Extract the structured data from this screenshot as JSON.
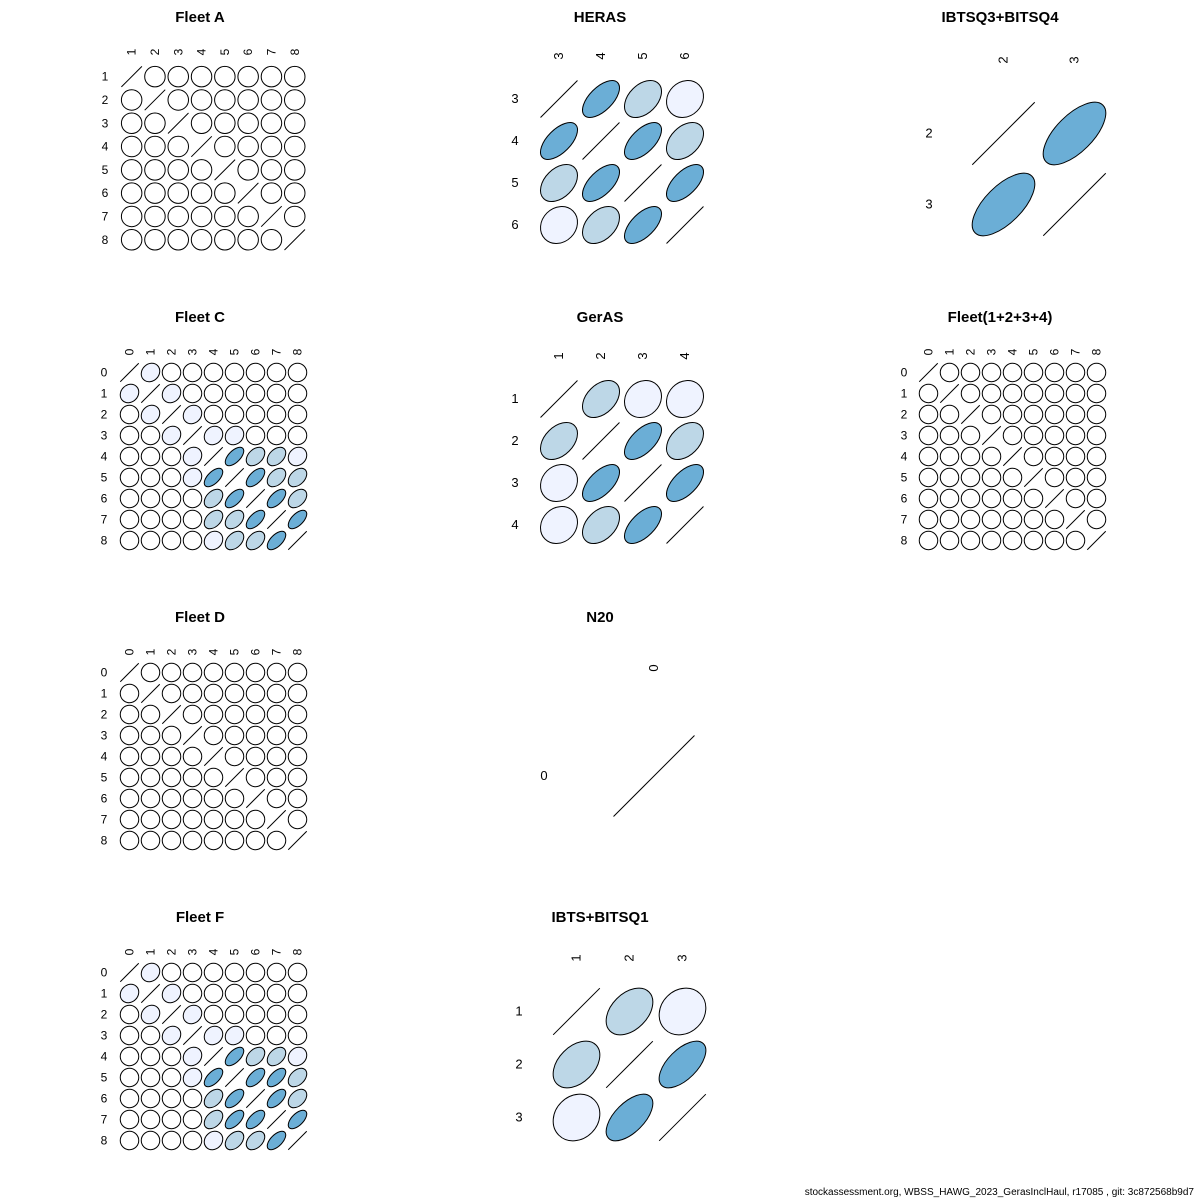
{
  "footer": "stockassessment.org, WBSS_HAWG_2023_GerasInclHaul, r17085 , git: 3c872568b9d7",
  "colors": {
    "strong": "#6baed6",
    "medium": "#bdd7e7",
    "light": "#eff3ff",
    "none": "#ffffff",
    "stroke": "#000000"
  },
  "chart_data": [
    {
      "type": "correlation-ellipse-matrix",
      "title": "Fleet A",
      "labels": [
        "1",
        "2",
        "3",
        "4",
        "5",
        "6",
        "7",
        "8"
      ],
      "correlations": []
    },
    {
      "type": "correlation-ellipse-matrix",
      "title": "HERAS",
      "labels": [
        "3",
        "4",
        "5",
        "6"
      ],
      "correlations": [
        [
          0,
          1,
          0.6
        ],
        [
          0,
          2,
          0.4
        ],
        [
          0,
          3,
          0.15
        ],
        [
          1,
          2,
          0.6
        ],
        [
          1,
          3,
          0.4
        ],
        [
          2,
          3,
          0.6
        ]
      ]
    },
    {
      "type": "correlation-ellipse-matrix",
      "title": "IBTSQ3+BITSQ4",
      "labels": [
        "2",
        "3"
      ],
      "correlations": [
        [
          0,
          1,
          0.65
        ]
      ]
    },
    {
      "type": "correlation-ellipse-matrix",
      "title": "Fleet C",
      "labels": [
        "0",
        "1",
        "2",
        "3",
        "4",
        "5",
        "6",
        "7",
        "8"
      ],
      "correlations": [
        [
          0,
          1,
          0.15
        ],
        [
          1,
          2,
          0.15
        ],
        [
          2,
          3,
          0.15
        ],
        [
          3,
          4,
          0.15
        ],
        [
          3,
          5,
          0.15
        ],
        [
          4,
          5,
          0.6
        ],
        [
          4,
          6,
          0.4
        ],
        [
          4,
          7,
          0.4
        ],
        [
          4,
          8,
          0.15
        ],
        [
          5,
          6,
          0.6
        ],
        [
          5,
          7,
          0.4
        ],
        [
          5,
          8,
          0.4
        ],
        [
          6,
          7,
          0.6
        ],
        [
          6,
          8,
          0.4
        ],
        [
          7,
          8,
          0.6
        ],
        [
          3,
          4,
          0.15
        ]
      ]
    },
    {
      "type": "correlation-ellipse-matrix",
      "title": "GerAS",
      "labels": [
        "1",
        "2",
        "3",
        "4"
      ],
      "correlations": [
        [
          0,
          1,
          0.4
        ],
        [
          0,
          2,
          0.15
        ],
        [
          0,
          3,
          0.15
        ],
        [
          1,
          2,
          0.6
        ],
        [
          1,
          3,
          0.4
        ],
        [
          2,
          3,
          0.6
        ]
      ]
    },
    {
      "type": "correlation-ellipse-matrix",
      "title": "Fleet(1+2+3+4)",
      "labels": [
        "0",
        "1",
        "2",
        "3",
        "4",
        "5",
        "6",
        "7",
        "8"
      ],
      "correlations": []
    },
    {
      "type": "correlation-ellipse-matrix",
      "title": "Fleet D",
      "labels": [
        "0",
        "1",
        "2",
        "3",
        "4",
        "5",
        "6",
        "7",
        "8"
      ],
      "correlations": []
    },
    {
      "type": "correlation-ellipse-matrix",
      "title": "N20",
      "labels": [
        "0"
      ],
      "correlations": []
    },
    {
      "type": "correlation-ellipse-matrix",
      "title": "Fleet F",
      "labels": [
        "0",
        "1",
        "2",
        "3",
        "4",
        "5",
        "6",
        "7",
        "8"
      ],
      "correlations": [
        [
          0,
          1,
          0.15
        ],
        [
          1,
          2,
          0.15
        ],
        [
          2,
          3,
          0.15
        ],
        [
          3,
          4,
          0.15
        ],
        [
          3,
          5,
          0.15
        ],
        [
          4,
          5,
          0.6
        ],
        [
          4,
          6,
          0.4
        ],
        [
          4,
          7,
          0.4
        ],
        [
          4,
          8,
          0.15
        ],
        [
          5,
          6,
          0.6
        ],
        [
          5,
          7,
          0.6
        ],
        [
          5,
          8,
          0.4
        ],
        [
          6,
          7,
          0.6
        ],
        [
          6,
          8,
          0.4
        ],
        [
          7,
          8,
          0.6
        ]
      ]
    },
    {
      "type": "correlation-ellipse-matrix",
      "title": "IBTS+BITSQ1",
      "labels": [
        "1",
        "2",
        "3"
      ],
      "correlations": [
        [
          0,
          1,
          0.4
        ],
        [
          0,
          2,
          0.15
        ],
        [
          1,
          2,
          0.6
        ]
      ]
    }
  ]
}
